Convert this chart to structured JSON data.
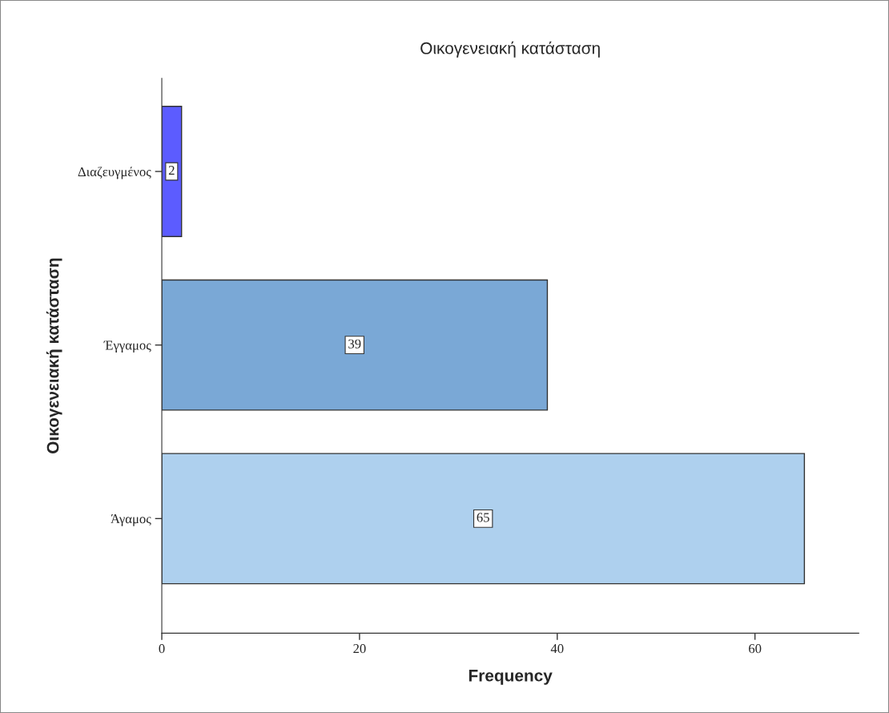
{
  "chart_data": {
    "type": "bar",
    "orientation": "horizontal",
    "title": "Οικογενειακή κατάσταση",
    "xlabel": "Frequency",
    "ylabel": "Οικογενειακή κατάσταση",
    "categories": [
      "Διαζευγμένος",
      "Έγγαμος",
      "Άγαμος"
    ],
    "values": [
      2,
      39,
      65
    ],
    "colors": [
      "#5c5cff",
      "#7aa8d6",
      "#aed0ee"
    ],
    "xlim": [
      0,
      70.5
    ],
    "xticks": [
      0,
      20,
      40,
      60
    ],
    "grid": false,
    "data_labels": true
  }
}
